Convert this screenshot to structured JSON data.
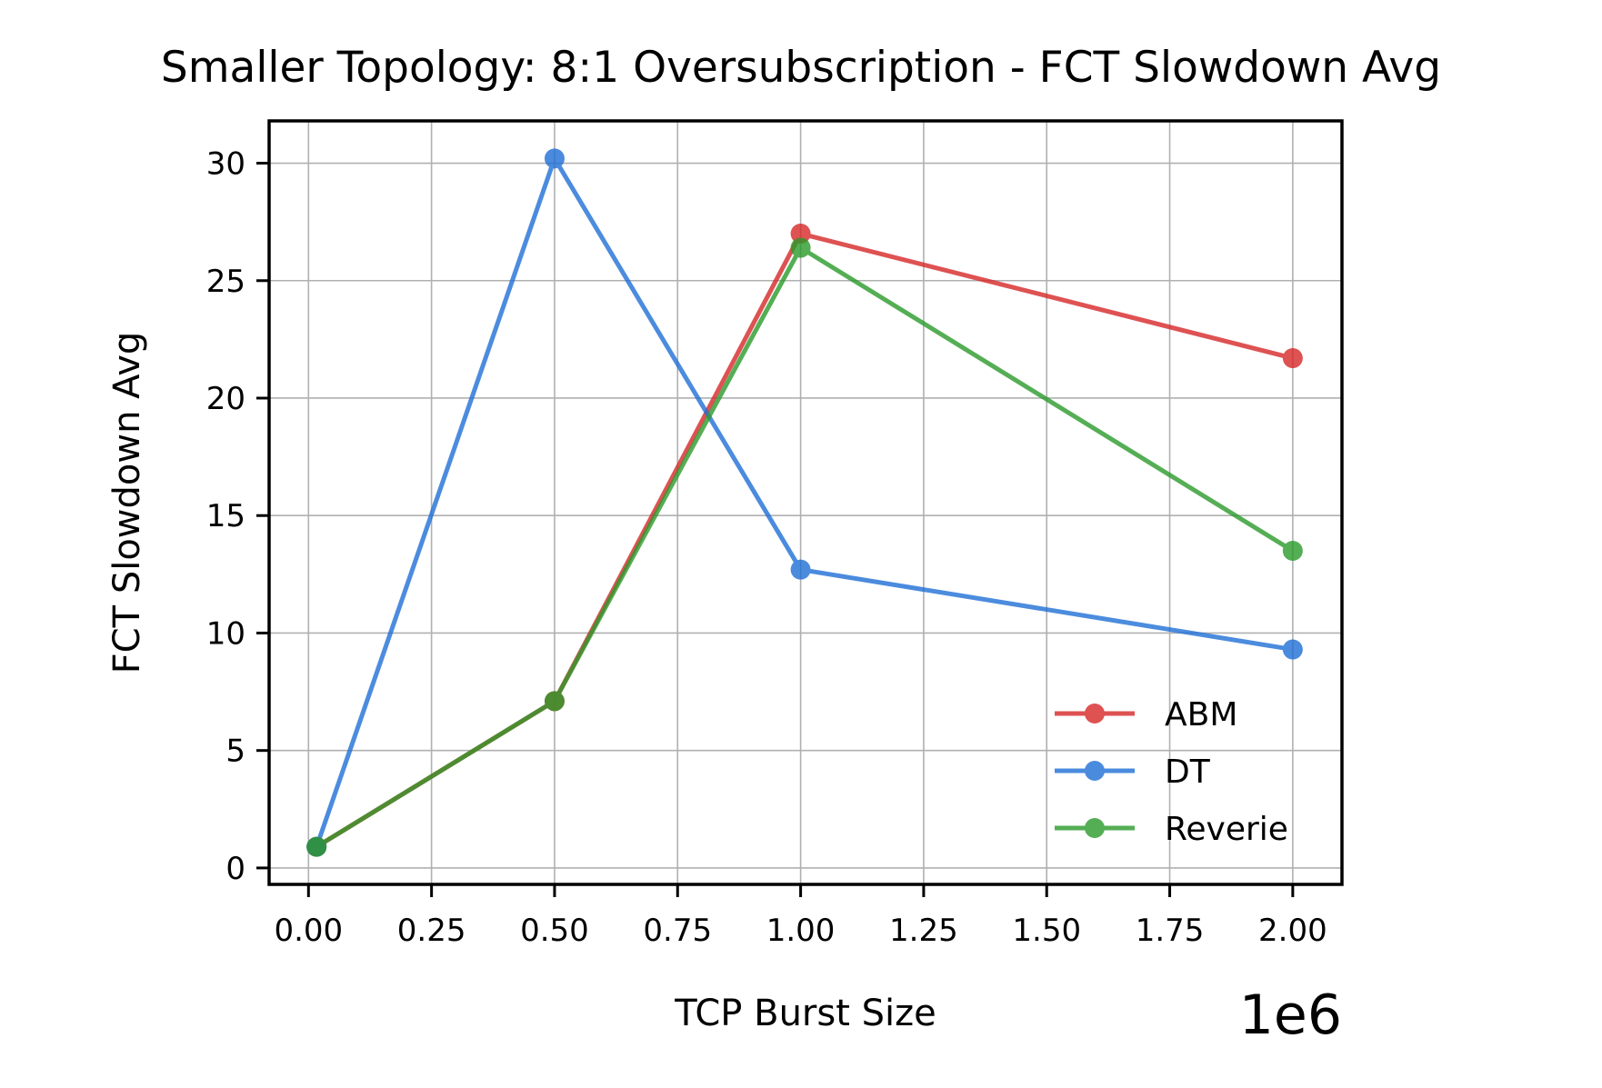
{
  "chart_data": {
    "type": "line",
    "title": "Smaller Topology: 8:1 Oversubscription - FCT Slowdown Avg",
    "xlabel": "TCP Burst Size",
    "ylabel": "FCT Slowdown Avg",
    "x_offset_label": "1e6",
    "xlim": [
      -0.08,
      2.1
    ],
    "ylim": [
      -0.7,
      31.8
    ],
    "xticks": [
      0.0,
      0.25,
      0.5,
      0.75,
      1.0,
      1.25,
      1.5,
      1.75,
      2.0
    ],
    "xtick_labels": [
      "0.00",
      "0.25",
      "0.50",
      "0.75",
      "1.00",
      "1.25",
      "1.50",
      "1.75",
      "2.00"
    ],
    "yticks": [
      0,
      5,
      10,
      15,
      20,
      25,
      30
    ],
    "ytick_labels": [
      "0",
      "5",
      "10",
      "15",
      "20",
      "25",
      "30"
    ],
    "grid": true,
    "legend_position": "lower-right",
    "series": [
      {
        "name": "ABM",
        "color": "#d62728",
        "x": [
          0.016384,
          0.5,
          1.0,
          2.0
        ],
        "y": [
          0.9,
          7.1,
          27.0,
          21.7
        ]
      },
      {
        "name": "DT",
        "color": "#1f6fd6",
        "x": [
          0.016384,
          0.5,
          1.0,
          2.0
        ],
        "y": [
          0.9,
          30.2,
          12.7,
          9.3
        ]
      },
      {
        "name": "Reverie",
        "color": "#2a9a2a",
        "x": [
          0.016384,
          0.5,
          1.0,
          2.0
        ],
        "y": [
          0.9,
          7.1,
          26.4,
          13.5
        ]
      }
    ]
  }
}
